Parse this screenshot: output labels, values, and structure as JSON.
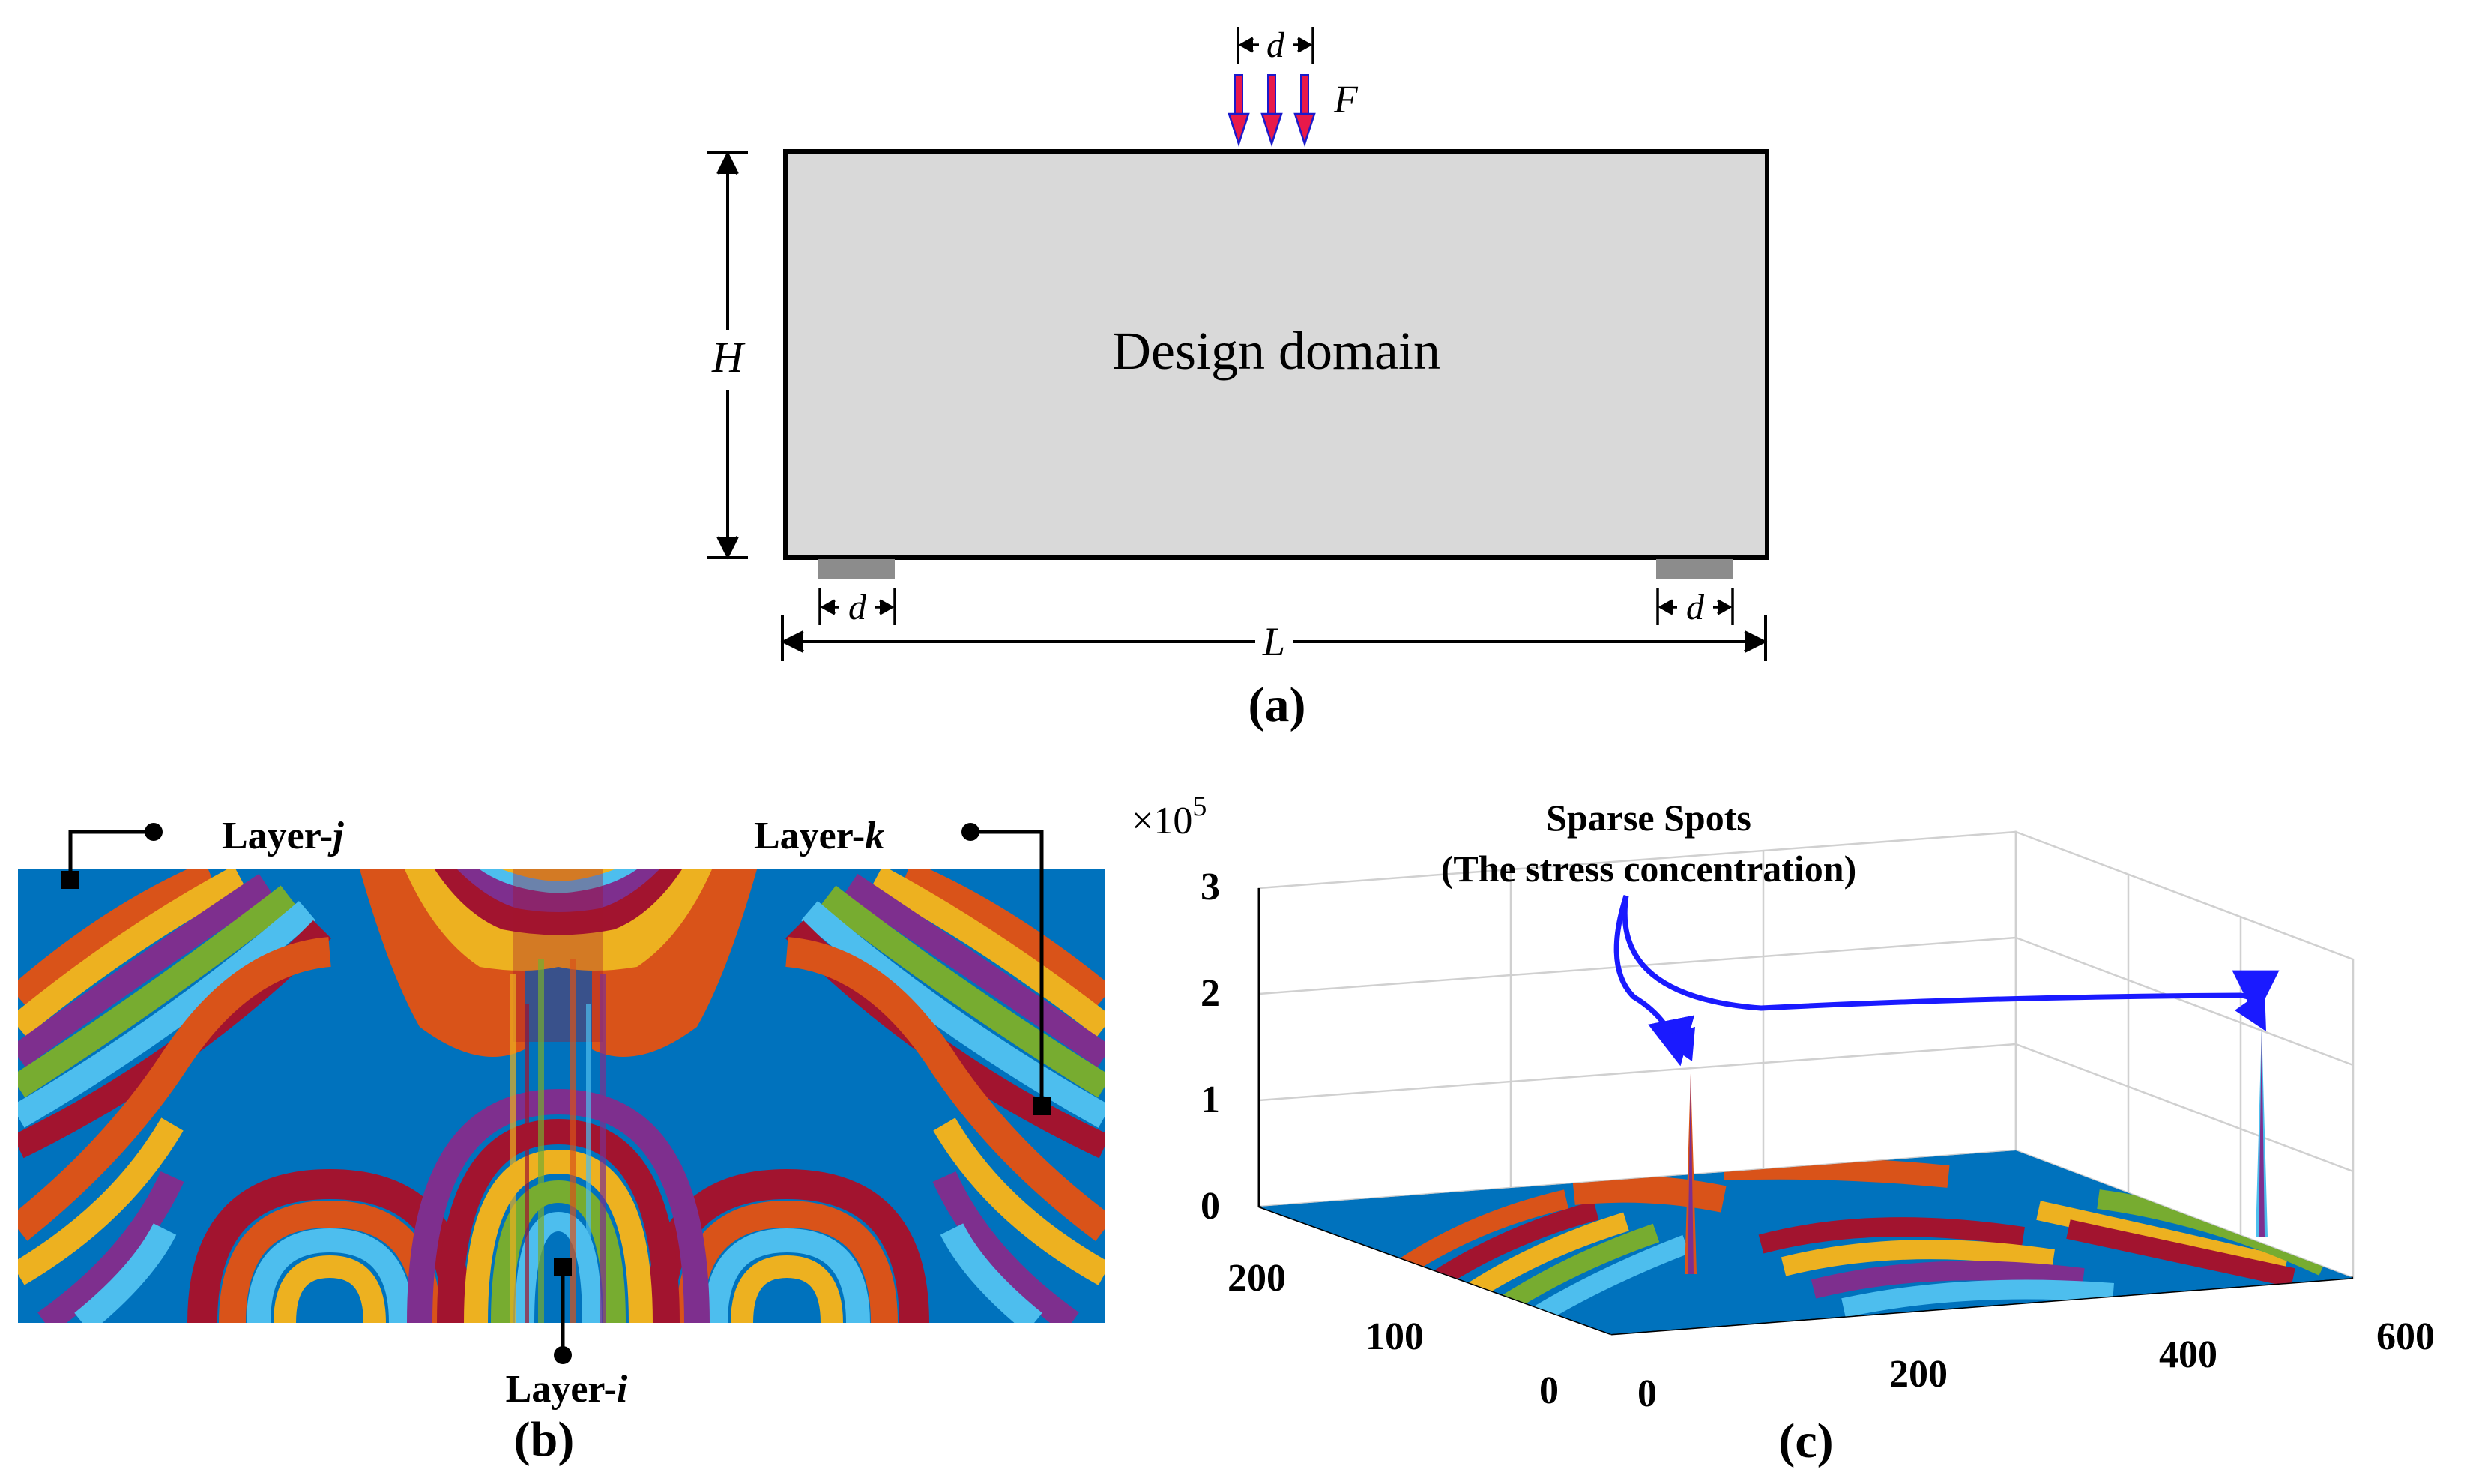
{
  "panel_a": {
    "label": "(a)",
    "domain_label": "Design domain",
    "height_label": "H",
    "length_label": "L",
    "load_width_label": "d",
    "support_left_label": "d",
    "support_right_label": "d",
    "force_label": "F",
    "colors": {
      "domain_fill": "#d9d9d9",
      "domain_stroke": "#000000",
      "support_fill": "#8c8c8c",
      "arrow_fill": "#e8194a",
      "arrow_stroke": "#1a1acc"
    }
  },
  "panel_b": {
    "label": "(b)",
    "layer_j_prefix": "Layer-",
    "layer_j_suffix": "j",
    "layer_k_prefix": "Layer-",
    "layer_k_suffix": "k",
    "layer_i_prefix": "Layer-",
    "layer_i_suffix": "i",
    "band_colors": [
      "#0072bd",
      "#d95319",
      "#edb120",
      "#7e2f8e",
      "#77ac30",
      "#4dbeee",
      "#a2142f"
    ]
  },
  "panel_c": {
    "label": "(c)",
    "scale_base": "×10",
    "scale_exp": "5",
    "annotation_title": "Sparse Spots",
    "annotation_subtitle": "(The stress concentration)",
    "z_ticks": [
      "0",
      "1",
      "2",
      "3"
    ],
    "x_ticks": [
      "0",
      "200",
      "400",
      "600"
    ],
    "y_ticks": [
      "0",
      "100",
      "200"
    ],
    "arrow_color": "#1a1aff"
  }
}
